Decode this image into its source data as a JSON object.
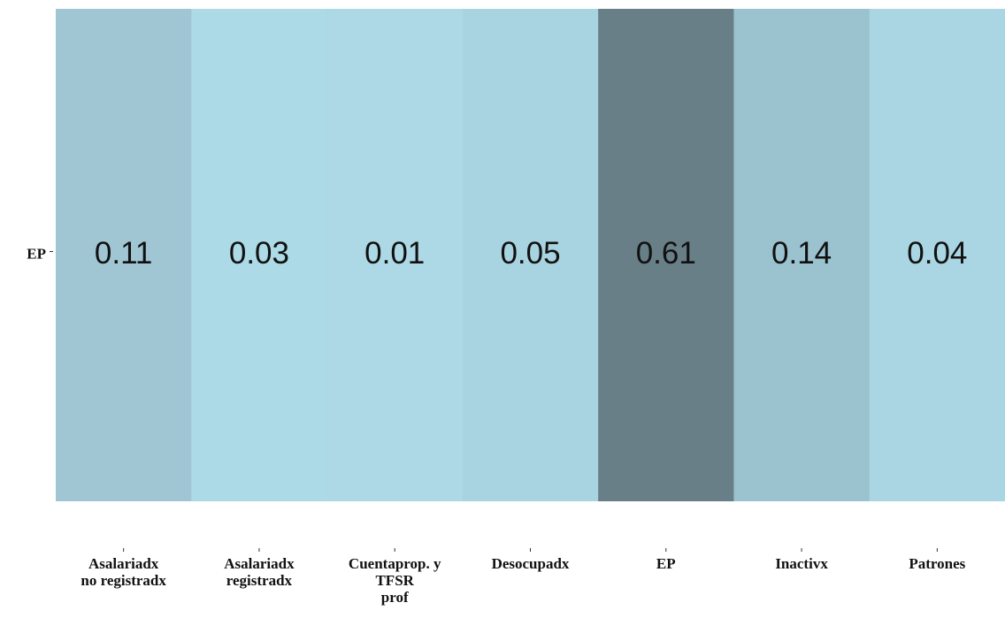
{
  "chart_data": {
    "type": "heatmap",
    "x_categories": [
      "Asalariadx\nno registradx",
      "Asalariadx\nregistradx",
      "Cuentaprop. y\nTFSR\nprof",
      "Desocupadx",
      "EP",
      "Inactivx",
      "Patrones"
    ],
    "y_categories": [
      "EP"
    ],
    "values": [
      [
        0.11,
        0.03,
        0.01,
        0.05,
        0.61,
        0.14,
        0.04
      ]
    ],
    "colors": [
      [
        "#a0c6d4",
        "#acdae7",
        "#add8e6",
        "#a8d3e0",
        "#687f88",
        "#9ac2cf",
        "#aad5e2"
      ]
    ]
  }
}
